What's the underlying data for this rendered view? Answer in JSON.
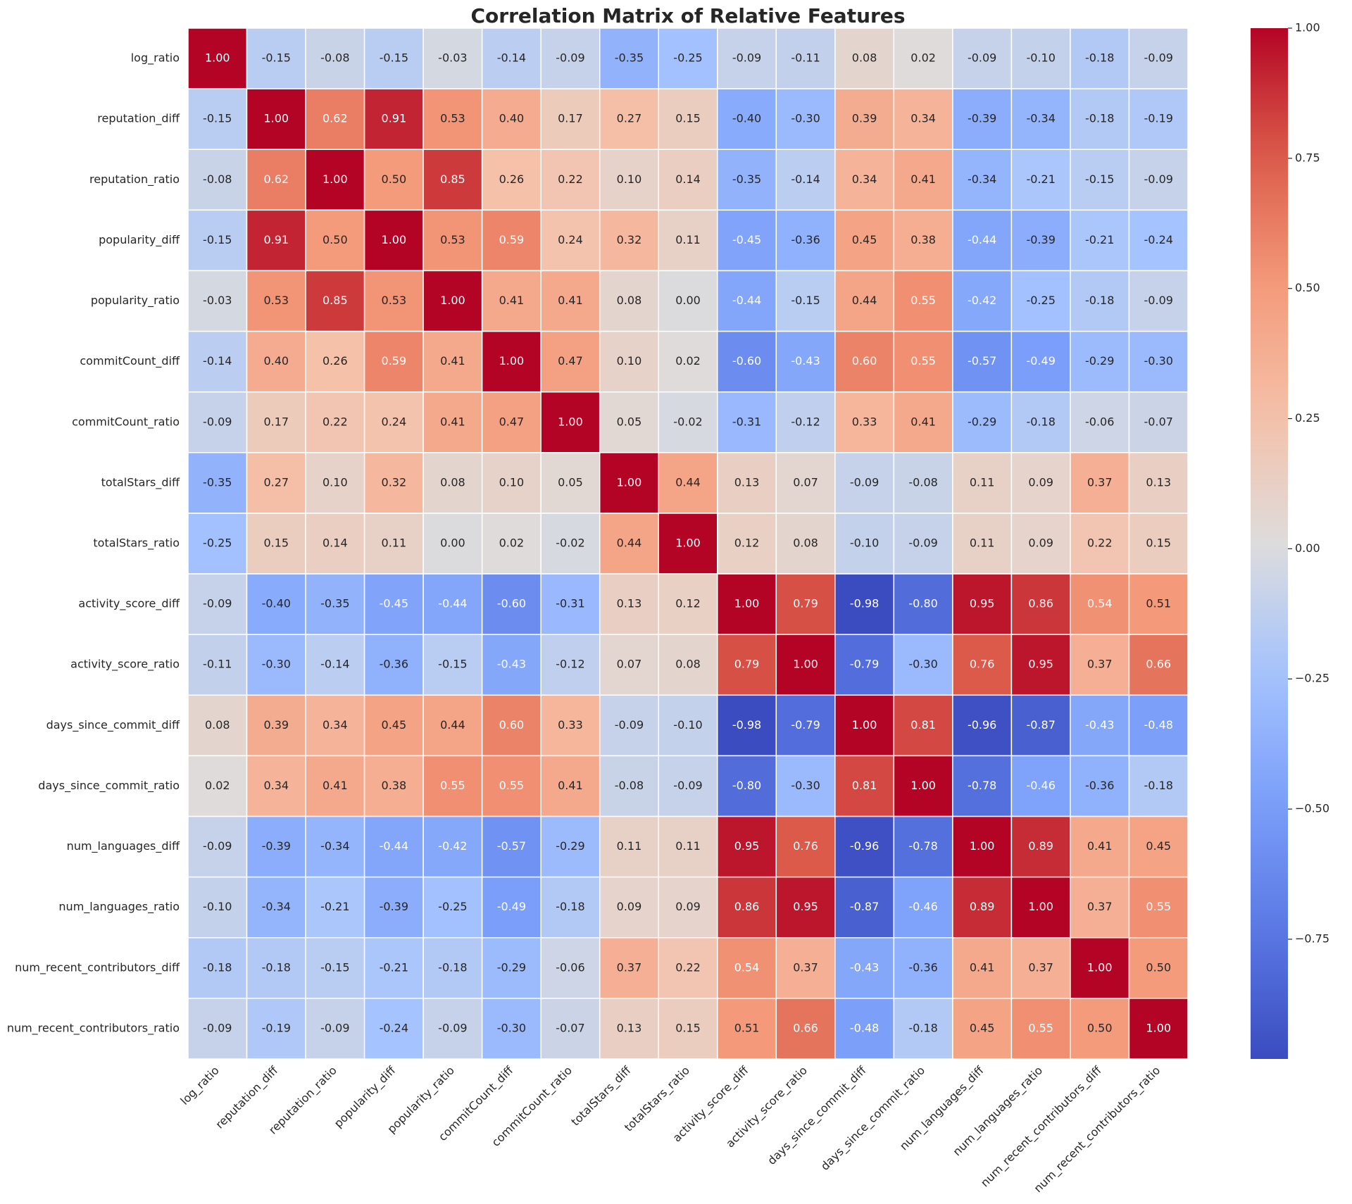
{
  "chart_data": {
    "type": "heatmap",
    "title": "Correlation Matrix of Relative Features",
    "categories": [
      "log_ratio",
      "reputation_diff",
      "reputation_ratio",
      "popularity_diff",
      "popularity_ratio",
      "commitCount_diff",
      "commitCount_ratio",
      "totalStars_diff",
      "totalStars_ratio",
      "activity_score_diff",
      "activity_score_ratio",
      "days_since_commit_diff",
      "days_since_commit_ratio",
      "num_languages_diff",
      "num_languages_ratio",
      "num_recent_contributors_diff",
      "num_recent_contributors_ratio"
    ],
    "values": [
      [
        1.0,
        -0.15,
        -0.08,
        -0.15,
        -0.03,
        -0.14,
        -0.09,
        -0.35,
        -0.25,
        -0.09,
        -0.11,
        0.08,
        0.02,
        -0.09,
        -0.1,
        -0.18,
        -0.09
      ],
      [
        -0.15,
        1.0,
        0.62,
        0.91,
        0.53,
        0.4,
        0.17,
        0.27,
        0.15,
        -0.4,
        -0.3,
        0.39,
        0.34,
        -0.39,
        -0.34,
        -0.18,
        -0.19
      ],
      [
        -0.08,
        0.62,
        1.0,
        0.5,
        0.85,
        0.26,
        0.22,
        0.1,
        0.14,
        -0.35,
        -0.14,
        0.34,
        0.41,
        -0.34,
        -0.21,
        -0.15,
        -0.09
      ],
      [
        -0.15,
        0.91,
        0.5,
        1.0,
        0.53,
        0.59,
        0.24,
        0.32,
        0.11,
        -0.45,
        -0.36,
        0.45,
        0.38,
        -0.44,
        -0.39,
        -0.21,
        -0.24
      ],
      [
        -0.03,
        0.53,
        0.85,
        0.53,
        1.0,
        0.41,
        0.41,
        0.08,
        0.0,
        -0.44,
        -0.15,
        0.44,
        0.55,
        -0.42,
        -0.25,
        -0.18,
        -0.09
      ],
      [
        -0.14,
        0.4,
        0.26,
        0.59,
        0.41,
        1.0,
        0.47,
        0.1,
        0.02,
        -0.6,
        -0.43,
        0.6,
        0.55,
        -0.57,
        -0.49,
        -0.29,
        -0.3
      ],
      [
        -0.09,
        0.17,
        0.22,
        0.24,
        0.41,
        0.47,
        1.0,
        0.05,
        -0.02,
        -0.31,
        -0.12,
        0.33,
        0.41,
        -0.29,
        -0.18,
        -0.06,
        -0.07
      ],
      [
        -0.35,
        0.27,
        0.1,
        0.32,
        0.08,
        0.1,
        0.05,
        1.0,
        0.44,
        0.13,
        0.07,
        -0.09,
        -0.08,
        0.11,
        0.09,
        0.37,
        0.13
      ],
      [
        -0.25,
        0.15,
        0.14,
        0.11,
        0.0,
        0.02,
        -0.02,
        0.44,
        1.0,
        0.12,
        0.08,
        -0.1,
        -0.09,
        0.11,
        0.09,
        0.22,
        0.15
      ],
      [
        -0.09,
        -0.4,
        -0.35,
        -0.45,
        -0.44,
        -0.6,
        -0.31,
        0.13,
        0.12,
        1.0,
        0.79,
        -0.98,
        -0.8,
        0.95,
        0.86,
        0.54,
        0.51
      ],
      [
        -0.11,
        -0.3,
        -0.14,
        -0.36,
        -0.15,
        -0.43,
        -0.12,
        0.07,
        0.08,
        0.79,
        1.0,
        -0.79,
        -0.3,
        0.76,
        0.95,
        0.37,
        0.66
      ],
      [
        0.08,
        0.39,
        0.34,
        0.45,
        0.44,
        0.6,
        0.33,
        -0.09,
        -0.1,
        -0.98,
        -0.79,
        1.0,
        0.81,
        -0.96,
        -0.87,
        -0.43,
        -0.48
      ],
      [
        0.02,
        0.34,
        0.41,
        0.38,
        0.55,
        0.55,
        0.41,
        -0.08,
        -0.09,
        -0.8,
        -0.3,
        0.81,
        1.0,
        -0.78,
        -0.46,
        -0.36,
        -0.18
      ],
      [
        -0.09,
        -0.39,
        -0.34,
        -0.44,
        -0.42,
        -0.57,
        -0.29,
        0.11,
        0.11,
        0.95,
        0.76,
        -0.96,
        -0.78,
        1.0,
        0.89,
        0.41,
        0.45
      ],
      [
        -0.1,
        -0.34,
        -0.21,
        -0.39,
        -0.25,
        -0.49,
        -0.18,
        0.09,
        0.09,
        0.86,
        0.95,
        -0.87,
        -0.46,
        0.89,
        1.0,
        0.37,
        0.55
      ],
      [
        -0.18,
        -0.18,
        -0.15,
        -0.21,
        -0.18,
        -0.29,
        -0.06,
        0.37,
        0.22,
        0.54,
        0.37,
        -0.43,
        -0.36,
        0.41,
        0.37,
        1.0,
        0.5
      ],
      [
        -0.09,
        -0.19,
        -0.09,
        -0.24,
        -0.09,
        -0.3,
        -0.07,
        0.13,
        0.15,
        0.51,
        0.66,
        -0.48,
        -0.18,
        0.45,
        0.55,
        0.5,
        1.0
      ]
    ],
    "value_labels": [
      [
        "1.00",
        "-0.15",
        "-0.08",
        "-0.15",
        "-0.03",
        "-0.14",
        "-0.09",
        "-0.35",
        "-0.25",
        "-0.09",
        "-0.11",
        "0.08",
        "0.02",
        "-0.09",
        "-0.10",
        "-0.18",
        "-0.09"
      ],
      [
        "-0.15",
        "1.00",
        "0.62",
        "0.91",
        "0.53",
        "0.40",
        "0.17",
        "0.27",
        "0.15",
        "-0.40",
        "-0.30",
        "0.39",
        "0.34",
        "-0.39",
        "-0.34",
        "-0.18",
        "-0.19"
      ],
      [
        "-0.08",
        "0.62",
        "1.00",
        "0.50",
        "0.85",
        "0.26",
        "0.22",
        "0.10",
        "0.14",
        "-0.35",
        "-0.14",
        "0.34",
        "0.41",
        "-0.34",
        "-0.21",
        "-0.15",
        "-0.09"
      ],
      [
        "-0.15",
        "0.91",
        "0.50",
        "1.00",
        "0.53",
        "0.59",
        "0.24",
        "0.32",
        "0.11",
        "-0.45",
        "-0.36",
        "0.45",
        "0.38",
        "-0.44",
        "-0.39",
        "-0.21",
        "-0.24"
      ],
      [
        "-0.03",
        "0.53",
        "0.85",
        "0.53",
        "1.00",
        "0.41",
        "0.41",
        "0.08",
        "0.00",
        "-0.44",
        "-0.15",
        "0.44",
        "0.55",
        "-0.42",
        "-0.25",
        "-0.18",
        "-0.09"
      ],
      [
        "-0.14",
        "0.40",
        "0.26",
        "0.59",
        "0.41",
        "1.00",
        "0.47",
        "0.10",
        "0.02",
        "-0.60",
        "-0.43",
        "0.60",
        "0.55",
        "-0.57",
        "-0.49",
        "-0.29",
        "-0.30"
      ],
      [
        "-0.09",
        "0.17",
        "0.22",
        "0.24",
        "0.41",
        "0.47",
        "1.00",
        "0.05",
        "-0.02",
        "-0.31",
        "-0.12",
        "0.33",
        "0.41",
        "-0.29",
        "-0.18",
        "-0.06",
        "-0.07"
      ],
      [
        "-0.35",
        "0.27",
        "0.10",
        "0.32",
        "0.08",
        "0.10",
        "0.05",
        "1.00",
        "0.44",
        "0.13",
        "0.07",
        "-0.09",
        "-0.08",
        "0.11",
        "0.09",
        "0.37",
        "0.13"
      ],
      [
        "-0.25",
        "0.15",
        "0.14",
        "0.11",
        "0.00",
        "0.02",
        "-0.02",
        "0.44",
        "1.00",
        "0.12",
        "0.08",
        "-0.10",
        "-0.09",
        "0.11",
        "0.09",
        "0.22",
        "0.15"
      ],
      [
        "-0.09",
        "-0.40",
        "-0.35",
        "-0.45",
        "-0.44",
        "-0.60",
        "-0.31",
        "0.13",
        "0.12",
        "1.00",
        "0.79",
        "-0.98",
        "-0.80",
        "0.95",
        "0.86",
        "0.54",
        "0.51"
      ],
      [
        "-0.11",
        "-0.30",
        "-0.14",
        "-0.36",
        "-0.15",
        "-0.43",
        "-0.12",
        "0.07",
        "0.08",
        "0.79",
        "1.00",
        "-0.79",
        "-0.30",
        "0.76",
        "0.95",
        "0.37",
        "0.66"
      ],
      [
        "0.08",
        "0.39",
        "0.34",
        "0.45",
        "0.44",
        "0.60",
        "0.33",
        "-0.09",
        "-0.10",
        "-0.98",
        "-0.79",
        "1.00",
        "0.81",
        "-0.96",
        "-0.87",
        "-0.43",
        "-0.48"
      ],
      [
        "0.02",
        "0.34",
        "0.41",
        "0.38",
        "0.55",
        "0.55",
        "0.41",
        "-0.08",
        "-0.09",
        "-0.80",
        "-0.30",
        "0.81",
        "1.00",
        "-0.78",
        "-0.46",
        "-0.36",
        "-0.18"
      ],
      [
        "-0.09",
        "-0.39",
        "-0.34",
        "-0.44",
        "-0.42",
        "-0.57",
        "-0.29",
        "0.11",
        "0.11",
        "0.95",
        "0.76",
        "-0.96",
        "-0.78",
        "1.00",
        "0.89",
        "0.41",
        "0.45"
      ],
      [
        "-0.10",
        "-0.34",
        "-0.21",
        "-0.39",
        "-0.25",
        "-0.49",
        "-0.18",
        "0.09",
        "0.09",
        "0.86",
        "0.95",
        "-0.87",
        "-0.46",
        "0.89",
        "1.00",
        "0.37",
        "0.55"
      ],
      [
        "-0.18",
        "-0.18",
        "-0.15",
        "-0.21",
        "-0.18",
        "-0.29",
        "-0.06",
        "0.37",
        "0.22",
        "0.54",
        "0.37",
        "-0.43",
        "-0.36",
        "0.41",
        "0.37",
        "1.00",
        "0.50"
      ],
      [
        "-0.09",
        "-0.19",
        "-0.09",
        "-0.24",
        "-0.09",
        "-0.30",
        "-0.07",
        "0.13",
        "0.15",
        "0.51",
        "0.66",
        "-0.48",
        "-0.18",
        "0.45",
        "0.55",
        "0.50",
        "1.00"
      ]
    ],
    "colormap": "coolwarm",
    "clim": [
      -0.98,
      1.0
    ],
    "cticks": [
      {
        "value": 1.0,
        "label": "1.00"
      },
      {
        "value": 0.75,
        "label": "0.75"
      },
      {
        "value": 0.5,
        "label": "0.50"
      },
      {
        "value": 0.25,
        "label": "0.25"
      },
      {
        "value": 0.0,
        "label": "0.00"
      },
      {
        "value": -0.25,
        "label": "−0.25"
      },
      {
        "value": -0.5,
        "label": "−0.50"
      },
      {
        "value": -0.75,
        "label": "−0.75"
      }
    ],
    "cell_border": "#ffffff"
  }
}
